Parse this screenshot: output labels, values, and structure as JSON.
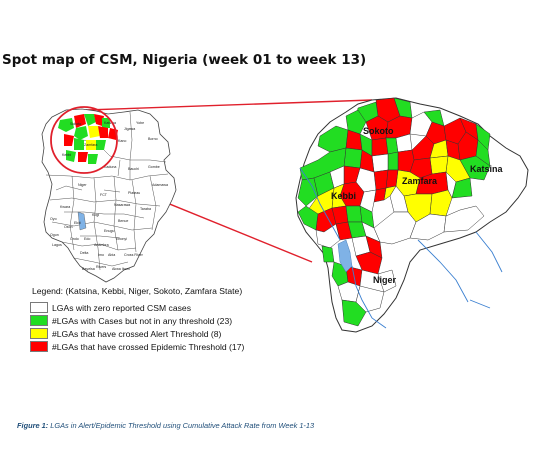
{
  "title": "Spot map of CSM, Nigeria (week 01 to week 13)",
  "colors": {
    "zero": "#ffffff",
    "cases": "#22dd22",
    "alert": "#ffff00",
    "epidemic": "#ff0000",
    "water": "#7fb2e6",
    "highlight": "#e0202c",
    "caption": "#1f4e79"
  },
  "inset_map": {
    "state_labels": [
      "Sokoto",
      "Katsina",
      "Kano",
      "Borno",
      "Zamfara",
      "Kebbi",
      "Kaduna",
      "Bauchi",
      "Gombe",
      "Niger",
      "Adamawa",
      "FCT",
      "Nasarawa",
      "Plateau",
      "Taraba",
      "Kwara",
      "Oyo",
      "Ogun",
      "Osun",
      "Ekiti",
      "Kogi",
      "Benue",
      "Lagos",
      "Ondo",
      "Edo",
      "Enugu",
      "Ebonyi",
      "Cross River",
      "Delta",
      "Rivers",
      "Akwa Ibom",
      "Bayelsa",
      "Anambra",
      "Abia",
      "Imo",
      "Jigawa",
      "Yobe"
    ]
  },
  "zoom_map": {
    "labels": {
      "sokoto": "Sokoto",
      "katsina": "Katsina",
      "zamfara": "Zamfara",
      "kebbi": "Kebbi",
      "niger": "Niger"
    }
  },
  "legend": {
    "title": "Legend: (Katsina, Kebbi, Niger, Sokoto, Zamfara State)",
    "items": [
      {
        "category": "zero",
        "label": "LGAs with zero reported CSM cases"
      },
      {
        "category": "cases",
        "label": "#LGAs with Cases but not in any threshold (23)"
      },
      {
        "category": "alert",
        "label": "#LGAs that have crossed Alert Threshold (8)"
      },
      {
        "category": "epidemic",
        "label": "#LGAs that have crossed Epidemic Threshold (17)"
      }
    ]
  },
  "caption": {
    "prefix": "Figure 1:",
    "text": " LGAs in Alert/Epidemic Threshold using Cumulative Attack Rate from Week 1-13"
  }
}
